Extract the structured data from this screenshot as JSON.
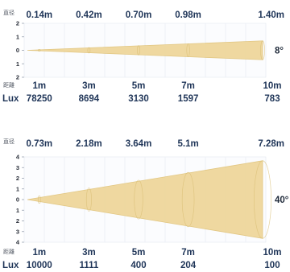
{
  "chart_data": [
    {
      "type": "area",
      "diameter_header": "直径",
      "distance_header": "距離",
      "lux_header": "Lux",
      "angle": "8°",
      "y_ticks": [
        "2",
        "1",
        "0",
        "1",
        "2"
      ],
      "diameters": [
        "0.14m",
        "0.42m",
        "0.70m",
        "0.98m",
        "1.40m"
      ],
      "distances": [
        "1m",
        "3m",
        "5m",
        "7m",
        "10m"
      ],
      "lux": [
        "78250",
        "8694",
        "3130",
        "1597",
        "783"
      ],
      "distance_values": [
        1,
        3,
        5,
        7,
        10
      ],
      "diameter_values": [
        0.14,
        0.42,
        0.7,
        0.98,
        1.4
      ],
      "lux_values": [
        78250,
        8694,
        3130,
        1597,
        783
      ],
      "ylim": [
        -2,
        2
      ]
    },
    {
      "type": "area",
      "diameter_header": "直径",
      "distance_header": "距離",
      "lux_header": "Lux",
      "angle": "40°",
      "y_ticks": [
        "4",
        "3",
        "2",
        "1",
        "0",
        "1",
        "2",
        "3",
        "4"
      ],
      "diameters": [
        "0.73m",
        "2.18m",
        "3.64m",
        "5.1m",
        "7.28m"
      ],
      "distances": [
        "1m",
        "3m",
        "5m",
        "7m",
        "10m"
      ],
      "lux": [
        "10000",
        "1111",
        "400",
        "204",
        "100"
      ],
      "distance_values": [
        1,
        3,
        5,
        7,
        10
      ],
      "diameter_values": [
        0.73,
        2.18,
        3.64,
        5.1,
        7.28
      ],
      "lux_values": [
        10000,
        1111,
        400,
        204,
        100
      ],
      "ylim": [
        -4,
        4
      ]
    }
  ],
  "colors": {
    "beam": "#efd79b",
    "beam_edge": "#e1c57e",
    "text": "#1f3558",
    "grid": "#eef1f6"
  }
}
